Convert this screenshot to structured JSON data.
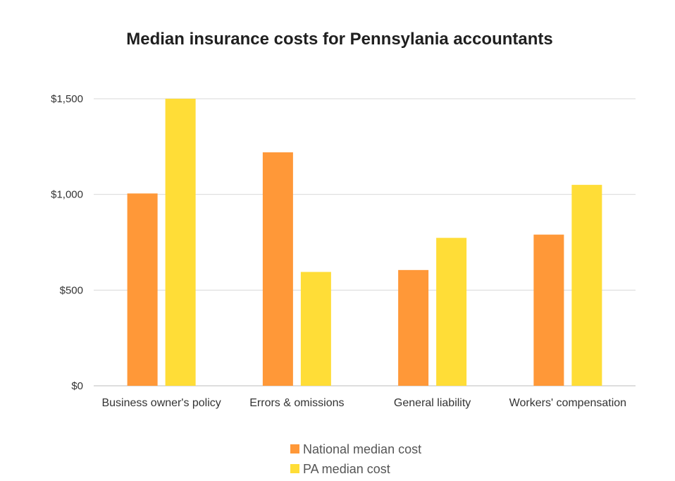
{
  "chart_data": {
    "type": "bar",
    "title": "Median insurance costs for Pennsylania accountants",
    "xlabel": "",
    "ylabel": "",
    "categories": [
      "Business owner's policy",
      "Errors & omissions",
      "General liability",
      "Workers' compensation"
    ],
    "series": [
      {
        "name": "National median cost",
        "values": [
          1005,
          1220,
          605,
          790
        ],
        "color": "#FF9838"
      },
      {
        "name": "PA median cost",
        "values": [
          1500,
          595,
          773,
          1050
        ],
        "color": "#FFDD37"
      }
    ],
    "ylim": [
      0,
      1500
    ],
    "yticks": [
      0,
      500,
      1000,
      1500
    ],
    "ytick_labels": [
      "$0",
      "$500",
      "$1,000",
      "$1,500"
    ],
    "grid": true,
    "legend_position": "bottom"
  }
}
